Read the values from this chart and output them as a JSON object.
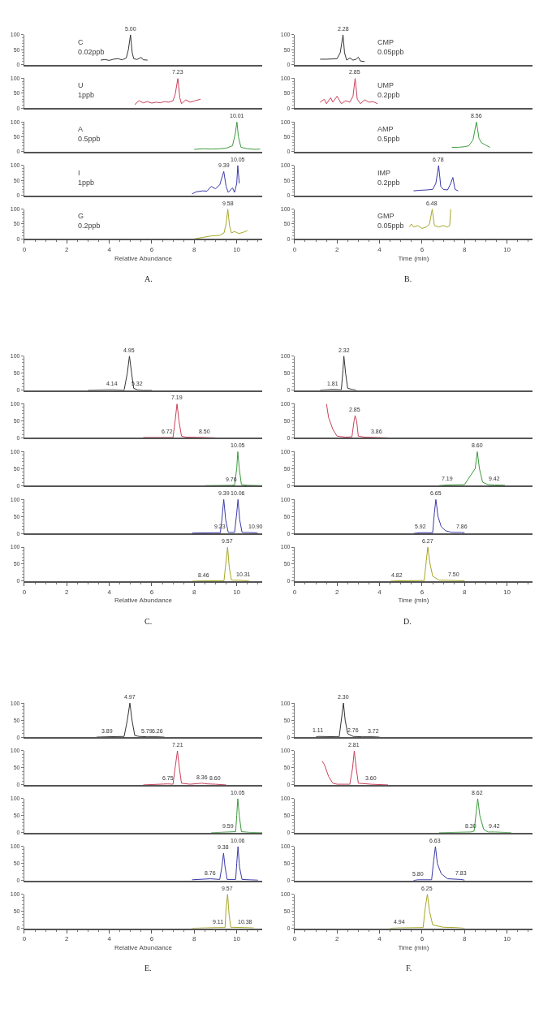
{
  "chart_data": [
    {
      "type": "line",
      "xlim": [
        0,
        11.2
      ],
      "xticks": [
        0,
        2,
        4,
        6,
        8,
        10
      ],
      "ylim": [
        0,
        100
      ],
      "yticks": [
        0,
        50,
        100
      ],
      "tick_labels": "y",
      "series": [
        {
          "color": "#333333",
          "x": [
            3.6,
            3.8,
            4.0,
            4.2,
            4.4,
            4.6,
            4.8,
            4.9,
            5.0,
            5.08,
            5.15,
            5.3,
            5.5,
            5.6,
            5.8
          ],
          "values": [
            15,
            17,
            14,
            18,
            20,
            16,
            22,
            50,
            100,
            40,
            20,
            17,
            24,
            16,
            15
          ]
        }
      ],
      "annotations": [
        "C\n0.02ppb",
        {
          "text": "5.00",
          "x": 5.0,
          "y": 100
        }
      ]
    },
    {
      "type": "line",
      "xlim": [
        0,
        11.2
      ],
      "xticks": [
        0,
        2,
        4,
        6,
        8,
        10
      ],
      "ylim": [
        0,
        100
      ],
      "yticks": [
        0,
        50,
        100
      ],
      "tick_labels": "y",
      "series": [
        {
          "color": "#c8405a",
          "x": [
            5.2,
            5.4,
            5.6,
            5.8,
            6.0,
            6.2,
            6.4,
            6.6,
            6.8,
            7.0,
            7.1,
            7.23,
            7.32,
            7.4,
            7.6,
            7.8,
            8.0,
            8.3
          ],
          "values": [
            12,
            25,
            18,
            22,
            17,
            20,
            18,
            22,
            20,
            25,
            45,
            100,
            35,
            15,
            28,
            20,
            24,
            30
          ]
        }
      ],
      "annotations": [
        "U\n1ppb",
        {
          "text": "7.23",
          "x": 7.23,
          "y": 100
        }
      ]
    },
    {
      "type": "line",
      "xlim": [
        0,
        11.2
      ],
      "xticks": [
        0,
        2,
        4,
        6,
        8,
        10
      ],
      "ylim": [
        0,
        100
      ],
      "yticks": [
        0,
        50,
        100
      ],
      "tick_labels": "y",
      "series": [
        {
          "color": "#3c9a3c",
          "x": [
            8.0,
            8.4,
            8.8,
            9.2,
            9.5,
            9.8,
            9.93,
            10.01,
            10.08,
            10.2,
            10.5,
            10.9,
            11.1
          ],
          "values": [
            8,
            10,
            9,
            10,
            12,
            20,
            60,
            100,
            50,
            15,
            10,
            8,
            9
          ]
        }
      ],
      "annotations": [
        "A\n0.5ppb",
        {
          "text": "10.01",
          "x": 10.01,
          "y": 100
        }
      ]
    },
    {
      "type": "line",
      "xlim": [
        0,
        11.2
      ],
      "xticks": [
        0,
        2,
        4,
        6,
        8,
        10
      ],
      "ylim": [
        0,
        100
      ],
      "yticks": [
        0,
        50,
        100
      ],
      "tick_labels": "y",
      "series": [
        {
          "color": "#3a3aa8",
          "x": [
            7.9,
            8.1,
            8.4,
            8.6,
            8.8,
            9.0,
            9.2,
            9.39,
            9.5,
            9.6,
            9.8,
            9.9,
            10.0,
            10.05,
            10.12
          ],
          "values": [
            5,
            12,
            15,
            14,
            30,
            22,
            35,
            80,
            30,
            10,
            25,
            10,
            40,
            100,
            40
          ]
        }
      ],
      "annotations": [
        "I\n1ppb",
        {
          "text": "9.39",
          "x": 9.39,
          "y": 80
        },
        {
          "text": "10.05",
          "x": 10.05,
          "y": 100
        }
      ]
    },
    {
      "type": "line",
      "xlim": [
        0,
        11.2
      ],
      "xticks": [
        0,
        2,
        4,
        6,
        8,
        10
      ],
      "ylim": [
        0,
        100
      ],
      "yticks": [
        0,
        50,
        100
      ],
      "xlabel": "Relative Abundance",
      "series": [
        {
          "color": "#a6a626",
          "x": [
            8.0,
            8.4,
            8.8,
            9.2,
            9.4,
            9.5,
            9.58,
            9.66,
            9.75,
            9.9,
            10.1,
            10.3,
            10.5
          ],
          "values": [
            0,
            5,
            10,
            12,
            20,
            50,
            100,
            45,
            20,
            25,
            18,
            22,
            28
          ]
        }
      ],
      "annotations": [
        "G\n0.2ppb",
        {
          "text": "9.58",
          "x": 9.58,
          "y": 100
        },
        "A."
      ]
    },
    {
      "type": "line",
      "xlim": [
        0,
        11.2
      ],
      "xticks": [
        0,
        2,
        4,
        6,
        8,
        10
      ],
      "ylim": [
        0,
        100
      ],
      "yticks": [
        0,
        50,
        100
      ],
      "tick_labels": "y",
      "series": [
        {
          "color": "#333333",
          "x": [
            1.2,
            1.5,
            1.8,
            2.0,
            2.15,
            2.28,
            2.35,
            2.45,
            2.6,
            2.75,
            2.9,
            3.0,
            3.1,
            3.3
          ],
          "values": [
            18,
            18,
            19,
            20,
            40,
            100,
            40,
            15,
            22,
            15,
            18,
            25,
            12,
            10
          ]
        }
      ],
      "annotations": [
        "CMP\n0.05ppb",
        {
          "text": "2.28",
          "x": 2.28,
          "y": 100
        }
      ]
    },
    {
      "type": "line",
      "xlim": [
        0,
        11.2
      ],
      "xticks": [
        0,
        2,
        4,
        6,
        8,
        10
      ],
      "ylim": [
        0,
        100
      ],
      "yticks": [
        0,
        50,
        100
      ],
      "tick_labels": "y",
      "series": [
        {
          "color": "#c8405a",
          "x": [
            1.2,
            1.4,
            1.5,
            1.7,
            1.8,
            2.0,
            2.2,
            2.4,
            2.6,
            2.75,
            2.85,
            2.95,
            3.1,
            3.3,
            3.5,
            3.7,
            3.9
          ],
          "values": [
            20,
            30,
            15,
            35,
            20,
            40,
            15,
            25,
            20,
            40,
            100,
            30,
            15,
            28,
            20,
            22,
            15
          ]
        }
      ],
      "annotations": [
        "UMP\n0.2ppb",
        {
          "text": "2.85",
          "x": 2.85,
          "y": 100
        }
      ]
    },
    {
      "type": "line",
      "xlim": [
        0,
        11.2
      ],
      "xticks": [
        0,
        2,
        4,
        6,
        8,
        10
      ],
      "ylim": [
        0,
        100
      ],
      "yticks": [
        0,
        50,
        100
      ],
      "tick_labels": "y",
      "series": [
        {
          "color": "#3c9a3c",
          "x": [
            7.4,
            7.7,
            8.0,
            8.2,
            8.4,
            8.56,
            8.68,
            8.8,
            9.0,
            9.2
          ],
          "values": [
            15,
            15,
            17,
            20,
            40,
            100,
            45,
            30,
            22,
            15
          ]
        }
      ],
      "annotations": [
        "AMP\n0.5ppb",
        {
          "text": "8.56",
          "x": 8.56,
          "y": 100
        }
      ]
    },
    {
      "type": "line",
      "xlim": [
        0,
        11.2
      ],
      "xticks": [
        0,
        2,
        4,
        6,
        8,
        10
      ],
      "ylim": [
        0,
        100
      ],
      "yticks": [
        0,
        50,
        100
      ],
      "tick_labels": "y",
      "series": [
        {
          "color": "#3a3aa8",
          "x": [
            5.6,
            5.9,
            6.2,
            6.5,
            6.65,
            6.78,
            6.88,
            7.0,
            7.2,
            7.35,
            7.45,
            7.55,
            7.7
          ],
          "values": [
            15,
            17,
            18,
            20,
            40,
            100,
            30,
            20,
            18,
            40,
            60,
            20,
            15
          ]
        }
      ],
      "annotations": [
        "IMP\n0.2ppb",
        {
          "text": "6.78",
          "x": 6.78,
          "y": 100
        }
      ]
    },
    {
      "type": "line",
      "xlim": [
        0,
        11.2
      ],
      "xticks": [
        0,
        2,
        4,
        6,
        8,
        10
      ],
      "ylim": [
        0,
        100
      ],
      "yticks": [
        0,
        50,
        100
      ],
      "xlabel": "Time (min)",
      "series": [
        {
          "color": "#a6a626",
          "x": [
            5.4,
            5.5,
            5.6,
            5.8,
            6.0,
            6.2,
            6.35,
            6.48,
            6.58,
            6.8,
            7.0,
            7.2,
            7.3,
            7.35
          ],
          "values": [
            40,
            50,
            40,
            45,
            35,
            40,
            50,
            100,
            45,
            40,
            45,
            40,
            45,
            100
          ]
        }
      ],
      "annotations": [
        "GMP\n0.05ppb",
        {
          "text": "6.48",
          "x": 6.48,
          "y": 100
        },
        "B."
      ]
    },
    {
      "type": "line",
      "xlim": [
        0,
        11.2
      ],
      "xticks": [
        0,
        2,
        4,
        6,
        8,
        10
      ],
      "ylim": [
        0,
        100
      ],
      "yticks": [
        0,
        50,
        100
      ],
      "tick_labels": "y",
      "series": [
        {
          "color": "#333333",
          "x": [
            3.0,
            4.14,
            4.7,
            4.85,
            4.95,
            5.05,
            5.15,
            5.32,
            5.6,
            6.0
          ],
          "values": [
            0,
            1,
            0,
            50,
            100,
            50,
            5,
            1,
            0,
            0
          ]
        }
      ],
      "annotations": [
        {
          "text": "4.95",
          "x": 4.95,
          "y": 100
        },
        {
          "text": "4.14",
          "x": 4.14,
          "y": 1
        },
        {
          "text": "5.32",
          "x": 5.32,
          "y": 1
        }
      ]
    },
    {
      "type": "line",
      "xlim": [
        0,
        11.2
      ],
      "xticks": [
        0,
        2,
        4,
        6,
        8,
        10
      ],
      "ylim": [
        0,
        100
      ],
      "yticks": [
        0,
        50,
        100
      ],
      "tick_labels": "y",
      "series": [
        {
          "color": "#c8405a",
          "x": [
            5.6,
            6.72,
            7.0,
            7.1,
            7.19,
            7.28,
            7.4,
            7.6,
            8.5,
            9.0
          ],
          "values": [
            1,
            1,
            1,
            50,
            100,
            50,
            5,
            2,
            1,
            0
          ]
        }
      ],
      "annotations": [
        {
          "text": "7.19",
          "x": 7.19,
          "y": 100
        },
        {
          "text": "6.72",
          "x": 6.72,
          "y": 1
        },
        {
          "text": "8.50",
          "x": 8.5,
          "y": 1
        }
      ]
    },
    {
      "type": "line",
      "xlim": [
        0,
        11.2
      ],
      "xticks": [
        0,
        2,
        4,
        6,
        8,
        10
      ],
      "ylim": [
        0,
        100
      ],
      "yticks": [
        0,
        50,
        100
      ],
      "tick_labels": "y",
      "series": [
        {
          "color": "#3c9a3c",
          "x": [
            8.5,
            9.76,
            9.9,
            10.0,
            10.05,
            10.12,
            10.22,
            10.5,
            11.2
          ],
          "values": [
            0,
            1,
            2,
            50,
            100,
            50,
            3,
            1,
            0
          ]
        }
      ],
      "annotations": [
        {
          "text": "10.05",
          "x": 10.05,
          "y": 100
        },
        {
          "text": "9.76",
          "x": 9.76,
          "y": 1
        }
      ]
    },
    {
      "type": "line",
      "xlim": [
        0,
        11.2
      ],
      "xticks": [
        0,
        2,
        4,
        6,
        8,
        10
      ],
      "ylim": [
        0,
        100
      ],
      "yticks": [
        0,
        50,
        100
      ],
      "tick_labels": "y",
      "series": [
        {
          "color": "#3a3aa8",
          "x": [
            7.9,
            9.23,
            9.3,
            9.39,
            9.48,
            9.6,
            9.9,
            10.0,
            10.06,
            10.14,
            10.25,
            10.9,
            11.0
          ],
          "values": [
            1,
            2,
            40,
            100,
            40,
            3,
            3,
            60,
            100,
            40,
            3,
            2,
            0
          ]
        }
      ],
      "annotations": [
        {
          "text": "9.39",
          "x": 9.39,
          "y": 100
        },
        {
          "text": "10.06",
          "x": 10.06,
          "y": 100
        },
        {
          "text": "9.23",
          "x": 9.23,
          "y": 2
        },
        {
          "text": "10.90",
          "x": 10.9,
          "y": 2
        }
      ]
    },
    {
      "type": "line",
      "xlim": [
        0,
        11.2
      ],
      "xticks": [
        0,
        2,
        4,
        6,
        8,
        10
      ],
      "ylim": [
        0,
        100
      ],
      "yticks": [
        0,
        50,
        100
      ],
      "xlabel": "Relative Abundance",
      "series": [
        {
          "color": "#a6a626",
          "x": [
            7.9,
            8.46,
            9.4,
            9.5,
            9.57,
            9.65,
            9.75,
            10.31,
            10.6
          ],
          "values": [
            0,
            1,
            1,
            60,
            100,
            40,
            3,
            2,
            0
          ]
        }
      ],
      "annotations": [
        {
          "text": "9.57",
          "x": 9.57,
          "y": 100
        },
        {
          "text": "8.46",
          "x": 8.46,
          "y": 1
        },
        {
          "text": "10.31",
          "x": 10.31,
          "y": 2
        },
        "C."
      ]
    },
    {
      "type": "line",
      "xlim": [
        0,
        11.2
      ],
      "xticks": [
        0,
        2,
        4,
        6,
        8,
        10
      ],
      "ylim": [
        0,
        100
      ],
      "yticks": [
        0,
        50,
        100
      ],
      "tick_labels": "y",
      "series": [
        {
          "color": "#333333",
          "x": [
            1.2,
            1.81,
            2.2,
            2.28,
            2.32,
            2.4,
            2.5,
            2.7,
            2.9
          ],
          "values": [
            0,
            2,
            1,
            60,
            100,
            50,
            5,
            2,
            0
          ]
        }
      ],
      "annotations": [
        {
          "text": "2.32",
          "x": 2.32,
          "y": 100
        },
        {
          "text": "1.81",
          "x": 1.81,
          "y": 2
        }
      ]
    },
    {
      "type": "line",
      "xlim": [
        0,
        11.2
      ],
      "xticks": [
        0,
        2,
        4,
        6,
        8,
        10
      ],
      "ylim": [
        0,
        100
      ],
      "yticks": [
        0,
        50,
        100
      ],
      "tick_labels": "y",
      "series": [
        {
          "color": "#c8405a",
          "x": [
            1.5,
            1.6,
            1.8,
            2.0,
            2.4,
            2.7,
            2.8,
            2.85,
            2.92,
            3.0,
            3.3,
            3.86,
            4.4
          ],
          "values": [
            100,
            60,
            25,
            5,
            2,
            3,
            50,
            65,
            50,
            5,
            2,
            1,
            0
          ]
        }
      ],
      "annotations": [
        {
          "text": "2.85",
          "x": 2.85,
          "y": 65
        },
        {
          "text": "3.86",
          "x": 3.86,
          "y": 1
        }
      ]
    },
    {
      "type": "line",
      "xlim": [
        0,
        11.2
      ],
      "xticks": [
        0,
        2,
        4,
        6,
        8,
        10
      ],
      "ylim": [
        0,
        100
      ],
      "yticks": [
        0,
        50,
        100
      ],
      "tick_labels": "y",
      "series": [
        {
          "color": "#3c9a3c",
          "x": [
            6.8,
            7.19,
            8.0,
            8.5,
            8.6,
            8.7,
            8.85,
            9.1,
            9.42,
            9.9
          ],
          "values": [
            0,
            2,
            3,
            50,
            100,
            50,
            10,
            3,
            2,
            1
          ]
        }
      ],
      "annotations": [
        {
          "text": "8.60",
          "x": 8.6,
          "y": 100
        },
        {
          "text": "7.19",
          "x": 7.19,
          "y": 2
        },
        {
          "text": "9.42",
          "x": 9.42,
          "y": 2
        }
      ]
    },
    {
      "type": "line",
      "xlim": [
        0,
        11.2
      ],
      "xticks": [
        0,
        2,
        4,
        6,
        8,
        10
      ],
      "ylim": [
        0,
        100
      ],
      "yticks": [
        0,
        50,
        100
      ],
      "tick_labels": "y",
      "series": [
        {
          "color": "#3a3aa8",
          "x": [
            5.6,
            5.92,
            6.5,
            6.58,
            6.65,
            6.75,
            6.9,
            7.1,
            7.4,
            7.86,
            8.0
          ],
          "values": [
            0,
            2,
            2,
            60,
            100,
            50,
            20,
            8,
            3,
            3,
            2
          ]
        }
      ],
      "annotations": [
        {
          "text": "6.65",
          "x": 6.65,
          "y": 100
        },
        {
          "text": "5.92",
          "x": 5.92,
          "y": 2
        },
        {
          "text": "7.86",
          "x": 7.86,
          "y": 3
        }
      ]
    },
    {
      "type": "line",
      "xlim": [
        0,
        11.2
      ],
      "xticks": [
        0,
        2,
        4,
        6,
        8,
        10
      ],
      "ylim": [
        0,
        100
      ],
      "yticks": [
        0,
        50,
        100
      ],
      "xlabel": "Time (min)",
      "series": [
        {
          "color": "#a6a626",
          "x": [
            4.5,
            4.82,
            6.1,
            6.2,
            6.27,
            6.38,
            6.5,
            6.8,
            7.5,
            8.0
          ],
          "values": [
            0,
            1,
            2,
            60,
            100,
            50,
            15,
            3,
            2,
            1
          ]
        }
      ],
      "annotations": [
        {
          "text": "6.27",
          "x": 6.27,
          "y": 100
        },
        {
          "text": "4.82",
          "x": 4.82,
          "y": 1
        },
        {
          "text": "7.50",
          "x": 7.5,
          "y": 2
        },
        "D."
      ]
    },
    {
      "type": "line",
      "xlim": [
        0,
        11.2
      ],
      "xticks": [
        0,
        2,
        4,
        6,
        8,
        10
      ],
      "ylim": [
        0,
        100
      ],
      "yticks": [
        0,
        50,
        100
      ],
      "tick_labels": "y",
      "series": [
        {
          "color": "#333333",
          "x": [
            3.4,
            3.89,
            4.7,
            4.85,
            4.97,
            5.07,
            5.2,
            5.4,
            5.79,
            6.26,
            6.6
          ],
          "values": [
            0,
            1,
            2,
            50,
            100,
            50,
            5,
            2,
            1,
            1,
            0
          ]
        }
      ],
      "annotations": [
        {
          "text": "4.97",
          "x": 4.97,
          "y": 100
        },
        {
          "text": "3.89",
          "x": 3.89,
          "y": 1
        },
        {
          "text": "5.79",
          "x": 5.79,
          "y": 1
        },
        {
          "text": "6.26",
          "x": 6.26,
          "y": 1
        }
      ]
    },
    {
      "type": "line",
      "xlim": [
        0,
        11.2
      ],
      "xticks": [
        0,
        2,
        4,
        6,
        8,
        10
      ],
      "ylim": [
        0,
        100
      ],
      "yticks": [
        0,
        50,
        100
      ],
      "tick_labels": "y",
      "series": [
        {
          "color": "#c8405a",
          "x": [
            5.6,
            6.75,
            7.0,
            7.1,
            7.21,
            7.3,
            7.4,
            7.8,
            8.36,
            8.6,
            9.0,
            9.5
          ],
          "values": [
            0,
            3,
            2,
            50,
            100,
            50,
            5,
            2,
            5,
            3,
            2,
            0
          ]
        }
      ],
      "annotations": [
        {
          "text": "7.21",
          "x": 7.21,
          "y": 100
        },
        {
          "text": "6.75",
          "x": 6.75,
          "y": 3
        },
        {
          "text": "8.36",
          "x": 8.36,
          "y": 5
        },
        {
          "text": "8.60",
          "x": 9.0,
          "y": 2
        }
      ]
    },
    {
      "type": "line",
      "xlim": [
        0,
        11.2
      ],
      "xticks": [
        0,
        2,
        4,
        6,
        8,
        10
      ],
      "ylim": [
        0,
        100
      ],
      "yticks": [
        0,
        50,
        100
      ],
      "tick_labels": "y",
      "series": [
        {
          "color": "#3c9a3c",
          "x": [
            8.8,
            9.59,
            9.95,
            10.0,
            10.05,
            10.12,
            10.22,
            10.6,
            11.2
          ],
          "values": [
            0,
            2,
            3,
            50,
            100,
            50,
            3,
            1,
            0
          ]
        }
      ],
      "annotations": [
        {
          "text": "10.05",
          "x": 10.05,
          "y": 100
        },
        {
          "text": "9.59",
          "x": 9.59,
          "y": 2
        }
      ]
    },
    {
      "type": "line",
      "xlim": [
        0,
        11.2
      ],
      "xticks": [
        0,
        2,
        4,
        6,
        8,
        10
      ],
      "ylim": [
        0,
        100
      ],
      "yticks": [
        0,
        50,
        100
      ],
      "tick_labels": "y",
      "series": [
        {
          "color": "#3a3aa8",
          "x": [
            7.9,
            8.76,
            9.2,
            9.3,
            9.38,
            9.45,
            9.55,
            9.95,
            10.0,
            10.06,
            10.13,
            10.25,
            10.6,
            11.0
          ],
          "values": [
            2,
            5,
            3,
            40,
            80,
            40,
            3,
            3,
            50,
            100,
            40,
            3,
            2,
            1
          ]
        }
      ],
      "annotations": [
        {
          "text": "9.38",
          "x": 9.38,
          "y": 80
        },
        {
          "text": "8.76",
          "x": 8.76,
          "y": 5
        },
        {
          "text": "10.06",
          "x": 10.06,
          "y": 100
        }
      ]
    },
    {
      "type": "line",
      "xlim": [
        0,
        11.2
      ],
      "xticks": [
        0,
        2,
        4,
        6,
        8,
        10
      ],
      "ylim": [
        0,
        100
      ],
      "yticks": [
        0,
        50,
        100
      ],
      "xlabel": "Relative Abundance",
      "series": [
        {
          "color": "#a6a626",
          "x": [
            7.9,
            9.11,
            9.45,
            9.5,
            9.57,
            9.64,
            9.72,
            10.38,
            10.8
          ],
          "values": [
            0,
            2,
            2,
            60,
            100,
            40,
            3,
            2,
            1
          ]
        }
      ],
      "annotations": [
        {
          "text": "9.57",
          "x": 9.57,
          "y": 100
        },
        {
          "text": "9.11",
          "x": 9.11,
          "y": 2
        },
        {
          "text": "10.38",
          "x": 10.38,
          "y": 2
        },
        "E."
      ]
    },
    {
      "type": "line",
      "xlim": [
        0,
        11.2
      ],
      "xticks": [
        0,
        2,
        4,
        6,
        8,
        10
      ],
      "ylim": [
        0,
        100
      ],
      "yticks": [
        0,
        50,
        100
      ],
      "tick_labels": "y",
      "series": [
        {
          "color": "#333333",
          "x": [
            1.0,
            1.11,
            2.1,
            2.22,
            2.3,
            2.38,
            2.5,
            2.76,
            3.2,
            3.72,
            4.0
          ],
          "values": [
            0,
            2,
            1,
            60,
            100,
            50,
            10,
            2,
            1,
            1,
            0
          ]
        }
      ],
      "annotations": [
        {
          "text": "2.30",
          "x": 2.3,
          "y": 100
        },
        {
          "text": "1.11",
          "x": 1.11,
          "y": 2
        },
        {
          "text": "2.76",
          "x": 2.76,
          "y": 2
        },
        {
          "text": "3.72",
          "x": 3.72,
          "y": 1
        }
      ]
    },
    {
      "type": "line",
      "xlim": [
        0,
        11.2
      ],
      "xticks": [
        0,
        2,
        4,
        6,
        8,
        10
      ],
      "ylim": [
        0,
        100
      ],
      "yticks": [
        0,
        50,
        100
      ],
      "tick_labels": "y",
      "series": [
        {
          "color": "#c8405a",
          "x": [
            1.3,
            1.4,
            1.6,
            1.8,
            2.0,
            2.6,
            2.73,
            2.81,
            2.9,
            3.0,
            3.6,
            4.4
          ],
          "values": [
            70,
            60,
            25,
            5,
            2,
            2,
            50,
            100,
            50,
            5,
            2,
            0
          ]
        }
      ],
      "annotations": [
        {
          "text": "2.81",
          "x": 2.81,
          "y": 100
        },
        {
          "text": "3.60",
          "x": 3.6,
          "y": 2
        }
      ]
    },
    {
      "type": "line",
      "xlim": [
        0,
        11.2
      ],
      "xticks": [
        0,
        2,
        4,
        6,
        8,
        10
      ],
      "ylim": [
        0,
        100
      ],
      "yticks": [
        0,
        50,
        100
      ],
      "tick_labels": "y",
      "series": [
        {
          "color": "#3c9a3c",
          "x": [
            6.8,
            8.3,
            8.45,
            8.55,
            8.62,
            8.72,
            8.9,
            9.1,
            9.42,
            10.2
          ],
          "values": [
            0,
            2,
            5,
            60,
            100,
            50,
            10,
            2,
            2,
            0
          ]
        }
      ],
      "annotations": [
        {
          "text": "8.62",
          "x": 8.62,
          "y": 100
        },
        {
          "text": "8.30",
          "x": 8.3,
          "y": 2
        },
        {
          "text": "9.42",
          "x": 9.42,
          "y": 2
        }
      ]
    },
    {
      "type": "line",
      "xlim": [
        0,
        11.2
      ],
      "xticks": [
        0,
        2,
        4,
        6,
        8,
        10
      ],
      "ylim": [
        0,
        100
      ],
      "yticks": [
        0,
        50,
        100
      ],
      "tick_labels": "y",
      "series": [
        {
          "color": "#3a3aa8",
          "x": [
            5.6,
            5.8,
            6.45,
            6.55,
            6.63,
            6.72,
            6.9,
            7.2,
            7.83,
            8.0
          ],
          "values": [
            0,
            2,
            2,
            60,
            100,
            50,
            20,
            5,
            3,
            1
          ]
        }
      ],
      "annotations": [
        {
          "text": "6.63",
          "x": 6.63,
          "y": 100
        },
        {
          "text": "5.80",
          "x": 5.8,
          "y": 2
        },
        {
          "text": "7.83",
          "x": 7.83,
          "y": 3
        }
      ]
    },
    {
      "type": "line",
      "xlim": [
        0,
        11.2
      ],
      "xticks": [
        0,
        2,
        4,
        6,
        8,
        10
      ],
      "ylim": [
        0,
        100
      ],
      "yticks": [
        0,
        50,
        100
      ],
      "xlabel": "Time (min)",
      "series": [
        {
          "color": "#a6a626",
          "x": [
            4.5,
            4.94,
            6.05,
            6.15,
            6.25,
            6.35,
            6.5,
            7.0,
            7.6,
            8.0
          ],
          "values": [
            0,
            1,
            2,
            60,
            100,
            50,
            10,
            3,
            2,
            0
          ]
        }
      ],
      "annotations": [
        {
          "text": "6.25",
          "x": 6.25,
          "y": 100
        },
        {
          "text": "4.94",
          "x": 4.94,
          "y": 1
        },
        "F."
      ]
    }
  ]
}
